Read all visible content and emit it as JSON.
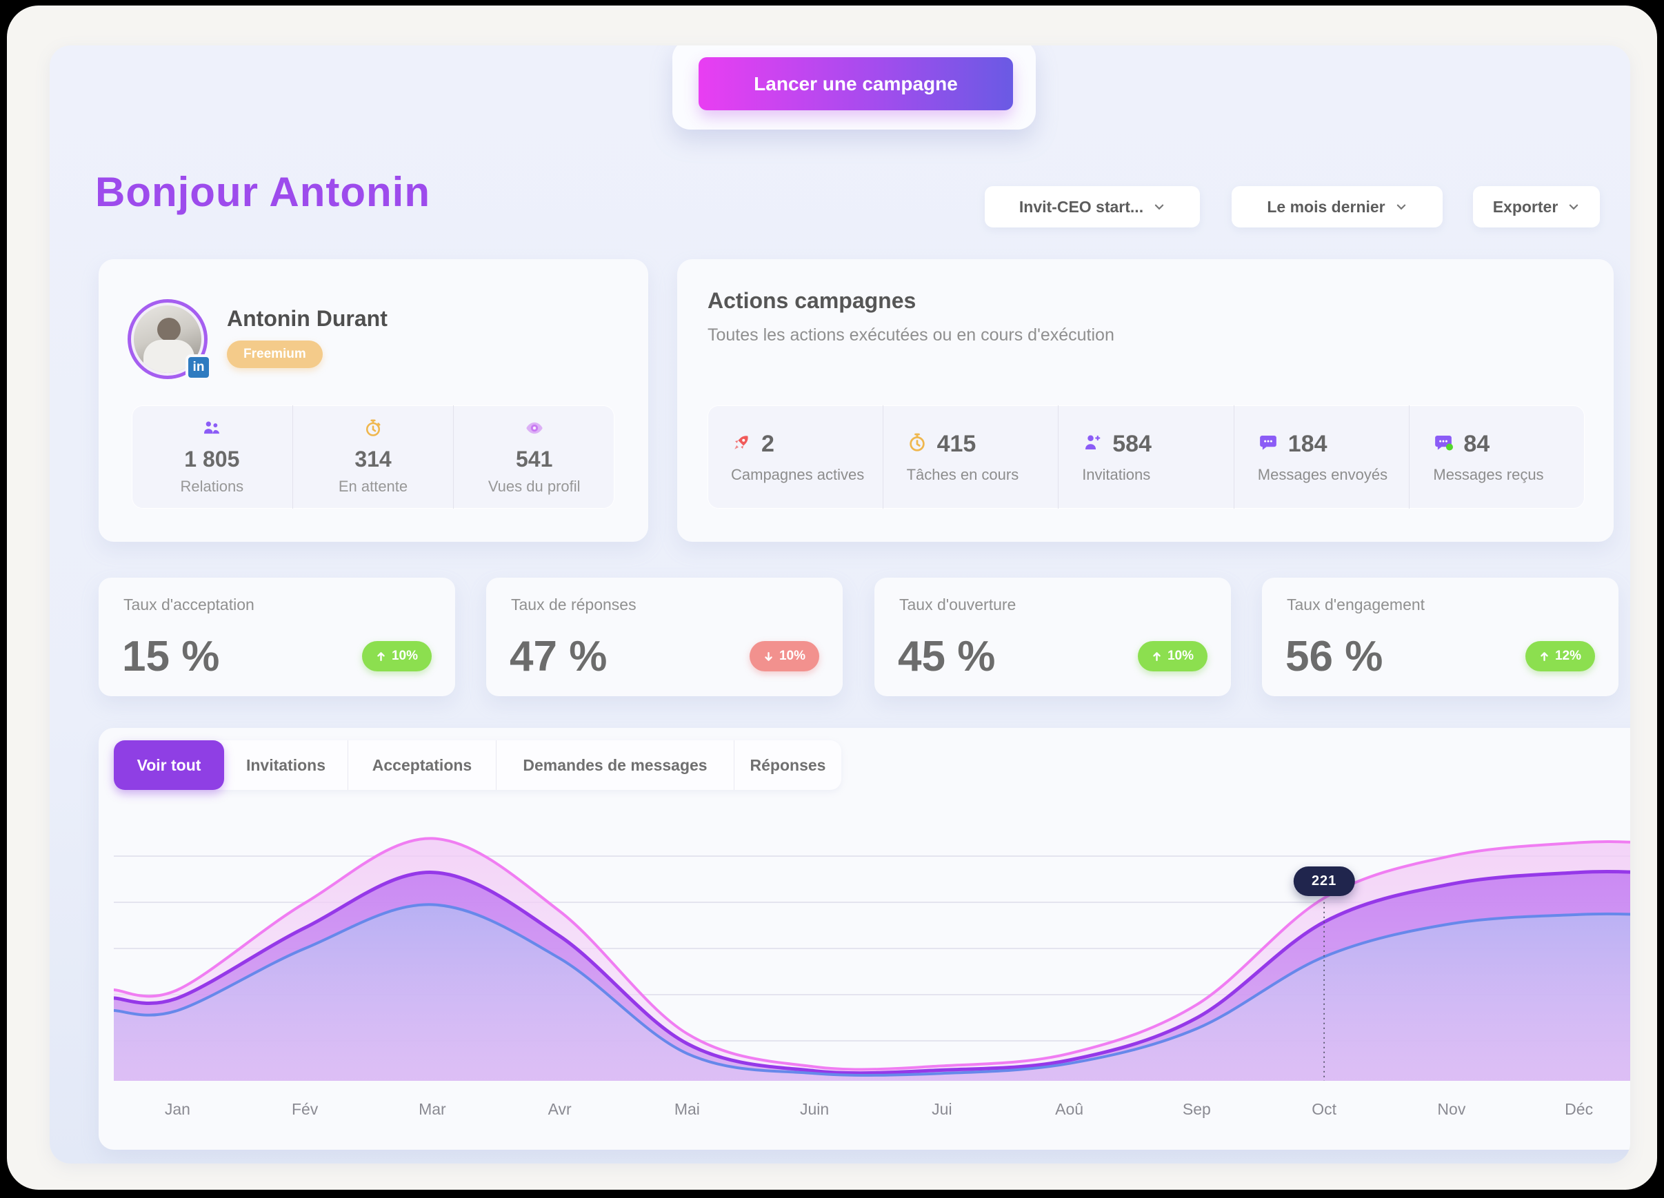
{
  "app": {
    "launch_button": "Lancer une campagne"
  },
  "header": {
    "greeting": "Bonjour Antonin",
    "filters": [
      {
        "label": "Invit-CEO start..."
      },
      {
        "label": "Le mois dernier"
      },
      {
        "label": "Exporter"
      }
    ]
  },
  "profile": {
    "name": "Antonin Durant",
    "plan_badge": "Freemium",
    "linkedin_badge": "in",
    "stats": [
      {
        "icon": "people-icon",
        "value": "1 805",
        "label": "Relations",
        "color": "#8b5cf6"
      },
      {
        "icon": "stopwatch-icon",
        "value": "314",
        "label": "En attente",
        "color": "#efb74e"
      },
      {
        "icon": "eye-icon",
        "value": "541",
        "label": "Vues du profil",
        "color": "#c879f2"
      }
    ]
  },
  "actions": {
    "title": "Actions campagnes",
    "subtitle": "Toutes les actions exécutées ou en cours d'exécution",
    "stats": [
      {
        "icon": "rocket-icon",
        "value": "2",
        "label": "Campagnes actives",
        "color": "#f05a5a"
      },
      {
        "icon": "stopwatch-icon",
        "value": "415",
        "label": "Tâches en cours",
        "color": "#efb74e"
      },
      {
        "icon": "person-plus-icon",
        "value": "584",
        "label": "Invitations",
        "color": "#8b5cf6"
      },
      {
        "icon": "chat-bubble-icon",
        "value": "184",
        "label": "Messages envoyés",
        "color": "#8b5cf6"
      },
      {
        "icon": "chat-bubble-dot-icon",
        "value": "84",
        "label": "Messages reçus",
        "color": "#8b5cf6",
        "dot_color": "#54d62c"
      }
    ]
  },
  "kpis": [
    {
      "label": "Taux d'acceptation",
      "value": "15 %",
      "delta": "10%",
      "direction": "up",
      "delta_color": "#8cdf4f"
    },
    {
      "label": "Taux de réponses",
      "value": "47 %",
      "delta": "10%",
      "direction": "down",
      "delta_color": "#f2918e"
    },
    {
      "label": "Taux d'ouverture",
      "value": "45 %",
      "delta": "10%",
      "direction": "up",
      "delta_color": "#8cdf4f"
    },
    {
      "label": "Taux d'engagement",
      "value": "56 %",
      "delta": "12%",
      "direction": "up",
      "delta_color": "#8cdf4f"
    }
  ],
  "chart_tabs": [
    {
      "label": "Voir tout",
      "active": true
    },
    {
      "label": "Invitations",
      "active": false
    },
    {
      "label": "Acceptations",
      "active": false
    },
    {
      "label": "Demandes de messages",
      "active": false
    },
    {
      "label": "Réponses",
      "active": false
    }
  ],
  "chart_data": {
    "type": "area",
    "x": [
      "Jan",
      "Fév",
      "Mar",
      "Avr",
      "Mai",
      "Juin",
      "Jui",
      "Aoû",
      "Sep",
      "Oct",
      "Nov",
      "Déc"
    ],
    "series": [
      {
        "name": "pink",
        "stroke": "#f07df2",
        "fill_top": "rgba(241,199,246,0.80)",
        "fill_bottom": "rgba(246,222,249,0.55)",
        "values": [
          110,
          215,
          293,
          205,
          57,
          17,
          18,
          33,
          92,
          221,
          272,
          288
        ]
      },
      {
        "name": "purple",
        "stroke": "#9538e8",
        "fill_top": "rgba(196,124,243,0.95)",
        "fill_bottom": "rgba(206,152,240,0.70)",
        "values": [
          100,
          185,
          252,
          175,
          45,
          12,
          13,
          25,
          76,
          192,
          238,
          252
        ]
      },
      {
        "name": "blue",
        "stroke": "#6688ea",
        "fill_top": "rgba(151,168,240,0.95)",
        "fill_bottom": "rgba(228,232,250,0.25)",
        "values": [
          85,
          160,
          213,
          148,
          33,
          9,
          9,
          21,
          63,
          150,
          190,
          201
        ]
      }
    ],
    "tooltip": {
      "month": "Oct",
      "value": "221"
    },
    "ylim": [
      0,
      300
    ],
    "grid": true,
    "legend": "none"
  },
  "colors": {
    "accent_purple": "#9d4bec",
    "button_gradient": [
      "#e93ef2",
      "#6a5ae4"
    ],
    "tab_active": "#8f3fe4",
    "panel_bg": "#eef1fb",
    "card_bg": "#f9fafd",
    "tooltip_bg": "#20254d",
    "green_pill": "#8cdf4f",
    "red_pill": "#f2918e",
    "freemium_badge": "#f4cb8a",
    "linkedin_blue": "#2e7bc0"
  }
}
